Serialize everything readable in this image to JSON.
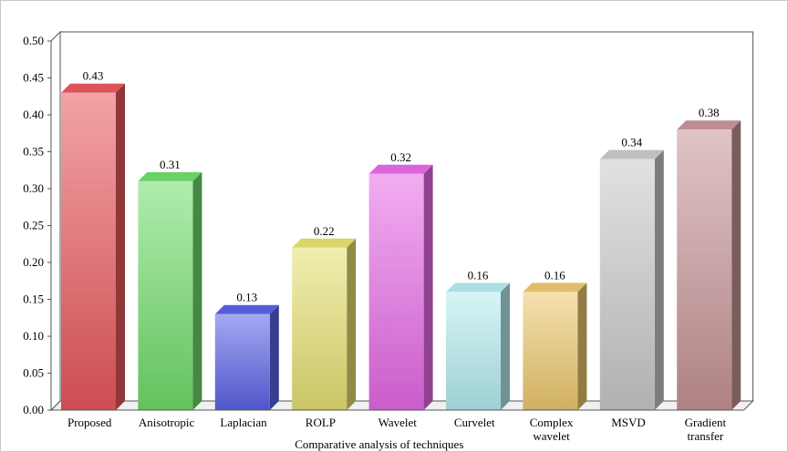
{
  "chart_data": {
    "type": "bar",
    "categories": [
      "Proposed",
      "Anisotropic",
      "Laplacian",
      "ROLP",
      "Wavelet",
      "Curvelet",
      "Complex wavelet",
      "MSVD",
      "Gradient transfer"
    ],
    "category_lines": [
      [
        "Proposed"
      ],
      [
        "Anisotropic"
      ],
      [
        "Laplacian"
      ],
      [
        "ROLP"
      ],
      [
        "Wavelet"
      ],
      [
        "Curvelet"
      ],
      [
        "Complex",
        "wavelet"
      ],
      [
        "MSVD"
      ],
      [
        "Gradient",
        "transfer"
      ]
    ],
    "values": [
      0.43,
      0.31,
      0.13,
      0.22,
      0.32,
      0.16,
      0.16,
      0.34,
      0.38
    ],
    "value_labels": [
      "0.43",
      "0.31",
      "0.13",
      "0.22",
      "0.32",
      "0.16",
      "0.16",
      "0.34",
      "0.38"
    ],
    "colors": [
      "#e8585c",
      "#6fdc6a",
      "#5a62e6",
      "#e6e072",
      "#e66ae6",
      "#b4ecef",
      "#ecc86e",
      "#c9c9c9",
      "#c79496"
    ],
    "xlabel": "Comparative analysis of techniques",
    "ylabel": "",
    "ylim": [
      0,
      0.5
    ],
    "yticks": [
      "0.00",
      "0.05",
      "0.10",
      "0.15",
      "0.20",
      "0.25",
      "0.30",
      "0.35",
      "0.40",
      "0.45",
      "0.50"
    ],
    "grid": false,
    "legend": "none",
    "style": "3d-bar"
  }
}
